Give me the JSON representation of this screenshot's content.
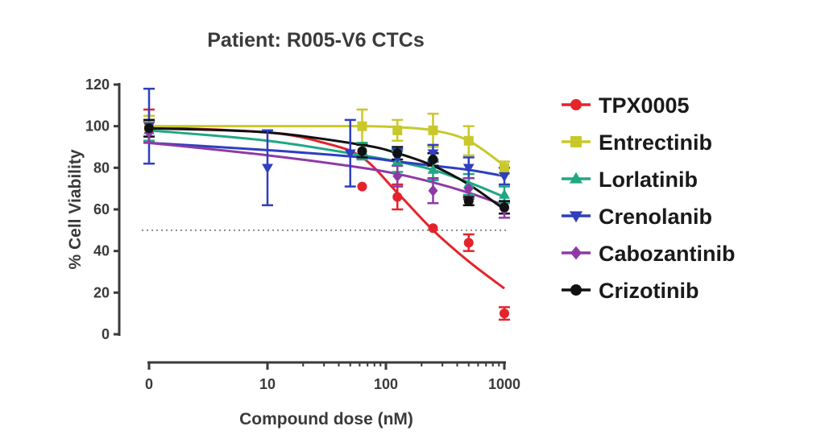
{
  "chart_data": {
    "type": "line",
    "title": "Patient: R005-V6 CTCs",
    "xlabel": "Compound dose (nM)",
    "ylabel": "% Cell Viability",
    "xscale": "log",
    "x_tick_labels": [
      "0",
      "10",
      "100",
      "1000"
    ],
    "y_ticks": [
      0,
      20,
      40,
      60,
      80,
      100,
      120
    ],
    "ylim": [
      0,
      120
    ],
    "reference_line": {
      "y": 50,
      "style": "dotted"
    },
    "legend_placement": "right",
    "series": [
      {
        "name": "TPX0005",
        "color": "#e3242b",
        "marker": "circle",
        "points": [
          {
            "x": "0",
            "y": 100,
            "err": 8
          },
          {
            "x": 63,
            "y": 71,
            "err": 0
          },
          {
            "x": 125,
            "y": 66,
            "err": 6
          },
          {
            "x": 250,
            "y": 51,
            "err": 0
          },
          {
            "x": 500,
            "y": 44,
            "err": 4
          },
          {
            "x": 1000,
            "y": 10,
            "err": 3
          }
        ],
        "curve": [
          [
            0.01,
            99.5
          ],
          [
            10,
            97
          ],
          [
            30,
            92
          ],
          [
            63,
            85
          ],
          [
            125,
            68
          ],
          [
            250,
            50
          ],
          [
            500,
            35
          ],
          [
            1000,
            22
          ]
        ]
      },
      {
        "name": "Entrectinib",
        "color": "#c9c82a",
        "marker": "square",
        "points": [
          {
            "x": "0",
            "y": 100,
            "err": 5
          },
          {
            "x": 63,
            "y": 100,
            "err": 8
          },
          {
            "x": 125,
            "y": 98,
            "err": 5
          },
          {
            "x": 250,
            "y": 98,
            "err": 8
          },
          {
            "x": 500,
            "y": 93,
            "err": 7
          },
          {
            "x": 1000,
            "y": 80,
            "err": 3
          }
        ],
        "curve": [
          [
            0.01,
            100
          ],
          [
            10,
            100
          ],
          [
            63,
            100
          ],
          [
            125,
            99.5
          ],
          [
            250,
            98
          ],
          [
            500,
            93
          ],
          [
            1000,
            81
          ]
        ]
      },
      {
        "name": "Lorlatinib",
        "color": "#20a784",
        "marker": "triangle-up",
        "points": [
          {
            "x": "0",
            "y": 98,
            "err": 5
          },
          {
            "x": 63,
            "y": 88,
            "err": 4
          },
          {
            "x": 125,
            "y": 83,
            "err": 5
          },
          {
            "x": 250,
            "y": 79,
            "err": 5
          },
          {
            "x": 500,
            "y": 72,
            "err": 5
          },
          {
            "x": 1000,
            "y": 67,
            "err": 4
          }
        ],
        "curve": [
          [
            0.01,
            98
          ],
          [
            10,
            93
          ],
          [
            63,
            86
          ],
          [
            125,
            83
          ],
          [
            250,
            79
          ],
          [
            500,
            73
          ],
          [
            1000,
            66
          ]
        ]
      },
      {
        "name": "Crenolanib",
        "color": "#2e3fbf",
        "marker": "triangle-down",
        "points": [
          {
            "x": "0",
            "y": 100,
            "err": 18
          },
          {
            "x": 10,
            "y": 80,
            "err": 18
          },
          {
            "x": 50,
            "y": 87,
            "err": 16
          },
          {
            "x": 125,
            "y": 85,
            "err": 4
          },
          {
            "x": 250,
            "y": 87,
            "err": 4
          },
          {
            "x": 500,
            "y": 80,
            "err": 5
          },
          {
            "x": 1000,
            "y": 76,
            "err": 4
          }
        ],
        "curve": [
          [
            0.01,
            92
          ],
          [
            10,
            88.5
          ],
          [
            63,
            85
          ],
          [
            125,
            83
          ],
          [
            250,
            81
          ],
          [
            500,
            79
          ],
          [
            1000,
            76
          ]
        ]
      },
      {
        "name": "Cabozantinib",
        "color": "#8e3aa6",
        "marker": "diamond",
        "points": [
          {
            "x": "0",
            "y": 97,
            "err": 5
          },
          {
            "x": 125,
            "y": 76,
            "err": 5
          },
          {
            "x": 250,
            "y": 69,
            "err": 6
          },
          {
            "x": 500,
            "y": 70,
            "err": 5
          },
          {
            "x": 1000,
            "y": 60,
            "err": 4
          }
        ],
        "curve": [
          [
            0.01,
            92
          ],
          [
            10,
            86
          ],
          [
            63,
            80
          ],
          [
            125,
            77
          ],
          [
            250,
            73
          ],
          [
            500,
            68
          ],
          [
            1000,
            62
          ]
        ]
      },
      {
        "name": "Crizotinib",
        "color": "#111111",
        "marker": "circle",
        "points": [
          {
            "x": "0",
            "y": 99,
            "err": 4
          },
          {
            "x": 63,
            "y": 88,
            "err": 3
          },
          {
            "x": 125,
            "y": 87,
            "err": 3
          },
          {
            "x": 250,
            "y": 84,
            "err": 3
          },
          {
            "x": 500,
            "y": 64,
            "err": 2
          },
          {
            "x": 1000,
            "y": 61,
            "err": 3
          }
        ],
        "curve": [
          [
            0.01,
            99
          ],
          [
            10,
            97
          ],
          [
            63,
            91
          ],
          [
            125,
            87
          ],
          [
            250,
            81
          ],
          [
            500,
            72
          ],
          [
            1000,
            60
          ]
        ]
      }
    ]
  }
}
